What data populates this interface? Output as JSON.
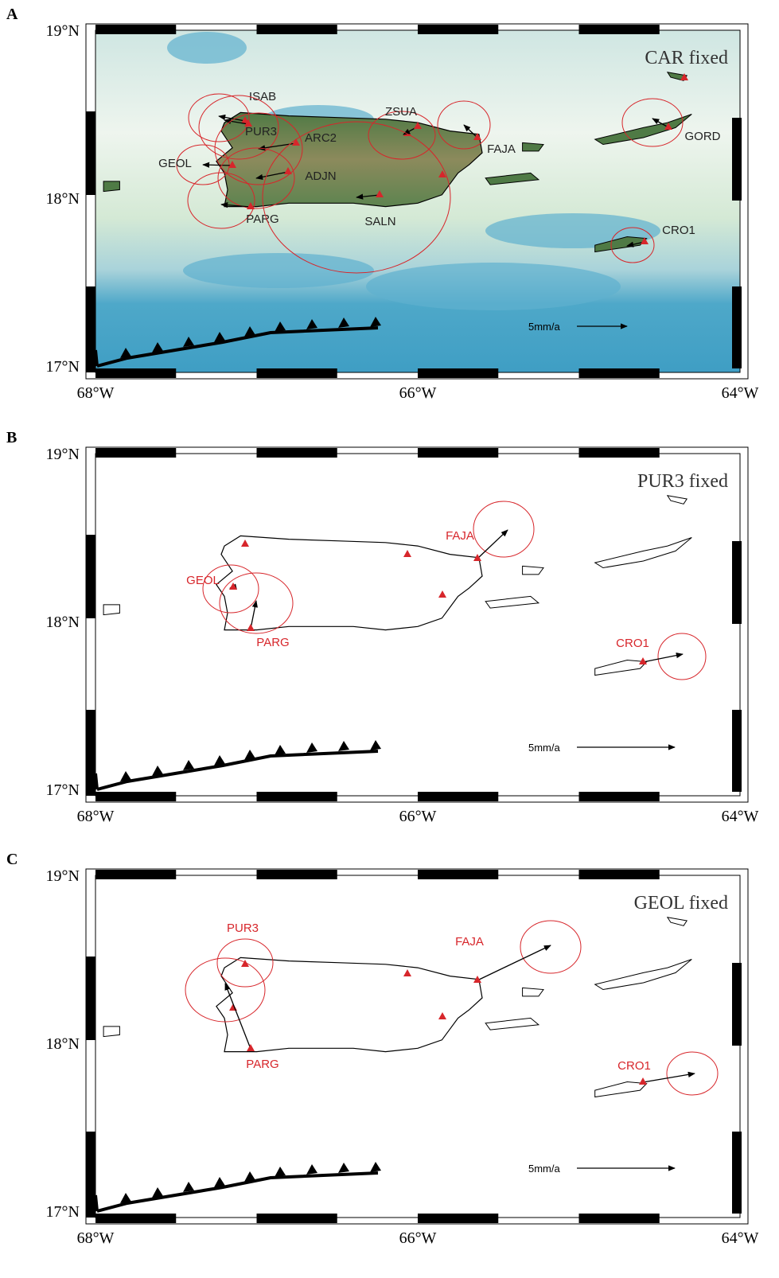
{
  "panels": [
    {
      "letter": "A",
      "title": "CAR fixed",
      "lat_labels": [
        "19°N",
        "18°N",
        "17°N"
      ],
      "lon_labels": [
        "68°W",
        "66°W",
        "64°W"
      ],
      "stations": [
        "ISAB",
        "PUR3",
        "ARC2",
        "GEOL",
        "ADJN",
        "PARG",
        "ZSUA",
        "FAJA",
        "SALN",
        "GORD",
        "CRO1"
      ],
      "scale": "5mm/a"
    },
    {
      "letter": "B",
      "title": "PUR3 fixed",
      "lat_labels": [
        "19°N",
        "18°N",
        "17°N"
      ],
      "lon_labels": [
        "68°W",
        "66°W",
        "64°W"
      ],
      "stations": [
        "FAJA",
        "GEOL",
        "PARG",
        "CRO1"
      ],
      "scale": "5mm/a"
    },
    {
      "letter": "C",
      "title": "GEOL fixed",
      "lat_labels": [
        "19°N",
        "18°N",
        "17°N"
      ],
      "lon_labels": [
        "68°W",
        "66°W",
        "64°W"
      ],
      "stations": [
        "PUR3",
        "PARG",
        "FAJA",
        "CRO1"
      ],
      "scale": "5mm/a"
    }
  ]
}
